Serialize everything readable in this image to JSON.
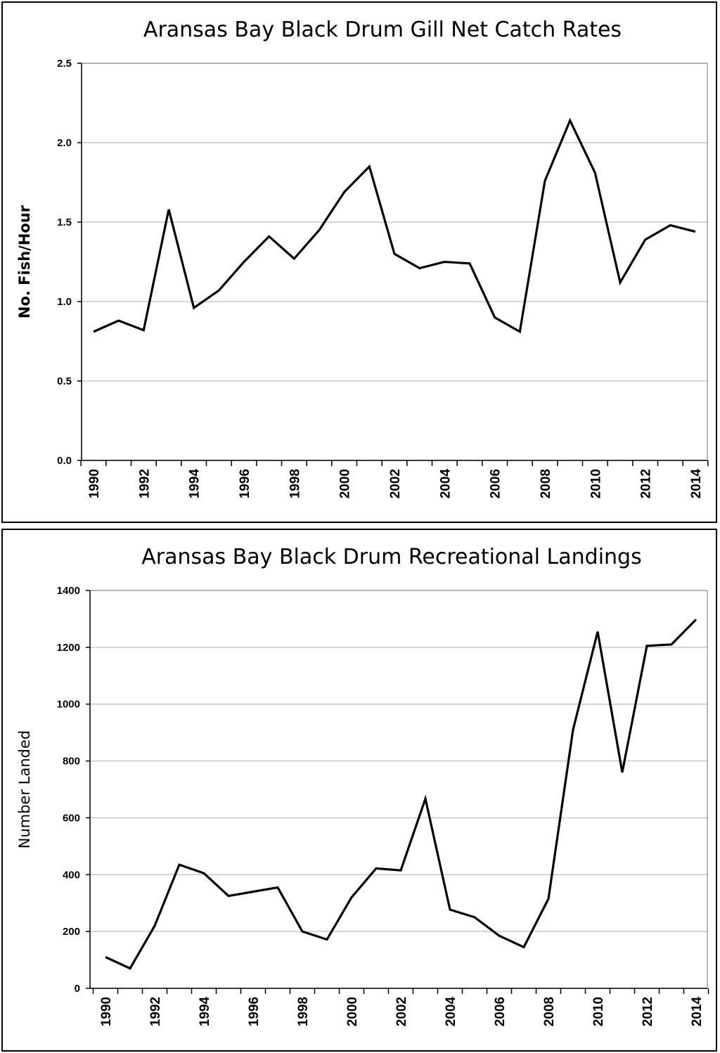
{
  "chart_data": [
    {
      "type": "line",
      "title": "Aransas Bay Black Drum Gill Net Catch Rates",
      "xlabel": "",
      "ylabel": "No. Fish/Hour",
      "ylim": [
        0.0,
        2.5
      ],
      "yticks": [
        "0.0",
        "0.5",
        "1.0",
        "1.5",
        "2.0",
        "2.5"
      ],
      "xticks": [
        "1990",
        "1992",
        "1994",
        "1996",
        "1998",
        "2000",
        "2002",
        "2004",
        "2006",
        "2008",
        "2010",
        "2012",
        "2014"
      ],
      "grid": true,
      "series": [
        {
          "name": "Gill Net Catch Rate",
          "x": [
            1990,
            1991,
            1992,
            1993,
            1994,
            1995,
            1996,
            1997,
            1998,
            1999,
            2000,
            2001,
            2002,
            2003,
            2004,
            2005,
            2006,
            2007,
            2008,
            2009,
            2010,
            2011,
            2012,
            2013,
            2014
          ],
          "values": [
            0.81,
            0.88,
            0.82,
            1.58,
            0.96,
            1.07,
            1.25,
            1.41,
            1.27,
            1.45,
            1.69,
            1.85,
            1.3,
            1.21,
            1.25,
            1.24,
            0.9,
            0.81,
            1.76,
            2.14,
            1.81,
            1.12,
            1.39,
            1.48,
            1.44
          ]
        }
      ]
    },
    {
      "type": "line",
      "title": "Aransas Bay Black Drum Recreational Landings",
      "xlabel": "",
      "ylabel": "Number Landed",
      "ylim": [
        0,
        1400
      ],
      "yticks": [
        "0",
        "200",
        "400",
        "600",
        "800",
        "1000",
        "1200",
        "1400"
      ],
      "xticks": [
        "1990",
        "1992",
        "1994",
        "1996",
        "1998",
        "2000",
        "2002",
        "2004",
        "2006",
        "2008",
        "2010",
        "2012",
        "2014"
      ],
      "grid": true,
      "series": [
        {
          "name": "Recreational Landings",
          "x": [
            1990,
            1991,
            1992,
            1993,
            1994,
            1995,
            1996,
            1997,
            1998,
            1999,
            2000,
            2001,
            2002,
            2003,
            2004,
            2005,
            2006,
            2007,
            2008,
            2009,
            2010,
            2011,
            2012,
            2013,
            2014
          ],
          "values": [
            110,
            70,
            220,
            435,
            405,
            325,
            340,
            355,
            200,
            172,
            320,
            422,
            415,
            667,
            277,
            250,
            185,
            145,
            315,
            910,
            1255,
            760,
            1205,
            1210,
            1298
          ]
        }
      ]
    }
  ]
}
